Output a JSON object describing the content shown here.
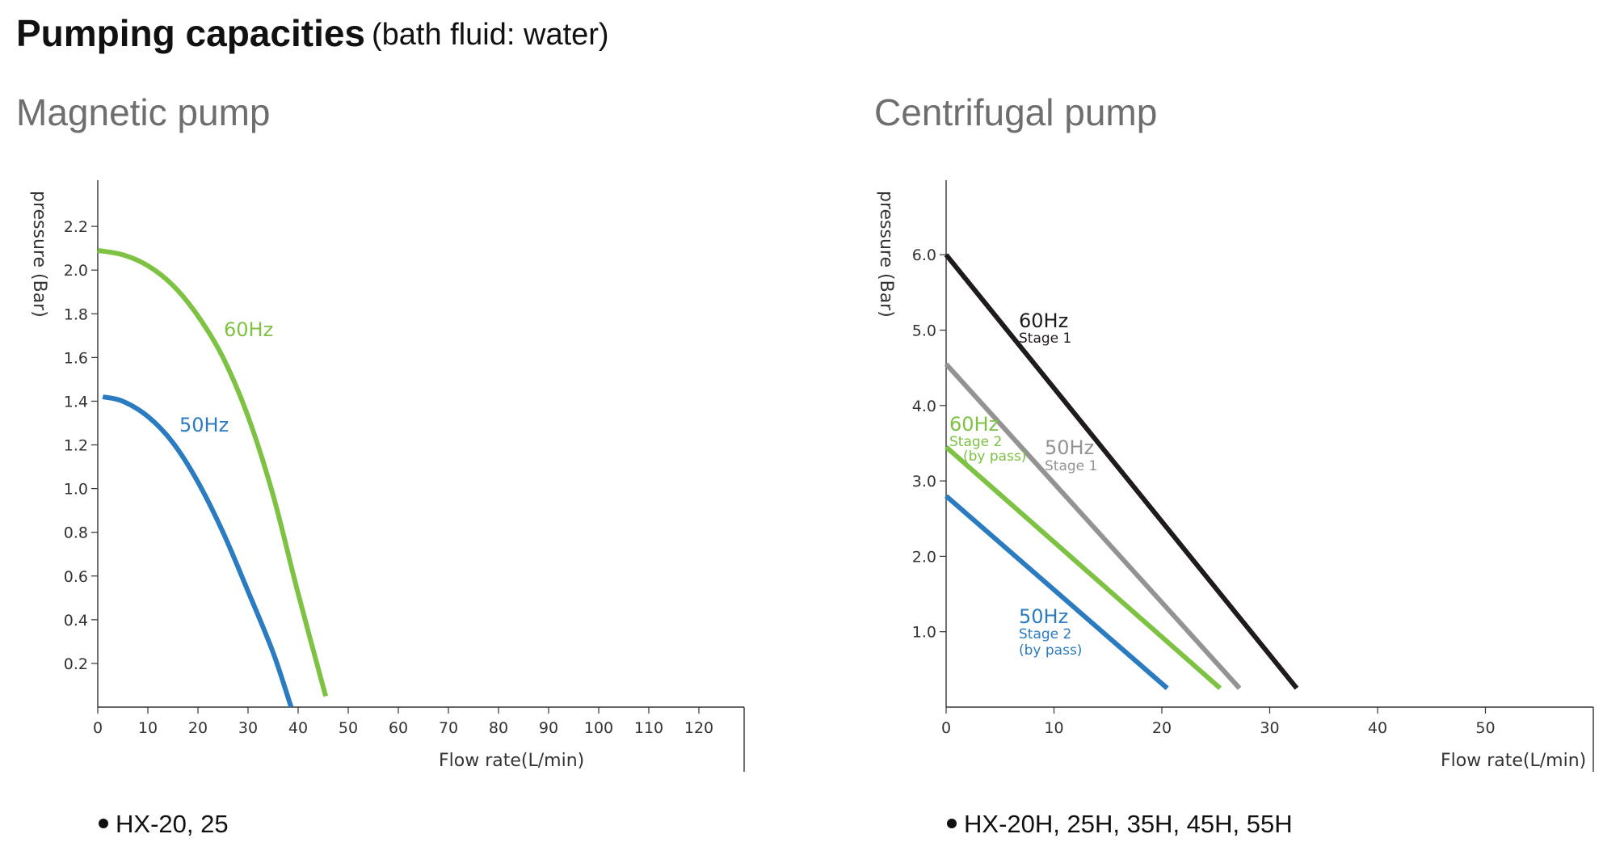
{
  "header": {
    "title": "Pumping capacities",
    "subtitle": "(bath fluid: water)"
  },
  "chart_data": [
    {
      "type": "line",
      "title": "Magnetic pump",
      "xlabel": "Flow rate(L/min)",
      "ylabel": "pressure (Bar)",
      "xlim": [
        0,
        130
      ],
      "ylim": [
        0,
        2.4
      ],
      "x_ticks": [
        "0",
        "10",
        "20",
        "30",
        "40",
        "50",
        "60",
        "70",
        "80",
        "90",
        "100",
        "110",
        "120"
      ],
      "y_ticks": [
        "0.2",
        "0.4",
        "0.6",
        "0.8",
        "1.0",
        "1.2",
        "1.4",
        "1.6",
        "1.8",
        "2.0",
        "2.2"
      ],
      "grid": false,
      "series": [
        {
          "name": "60Hz",
          "color": "#7dc242",
          "points": [
            [
              0,
              2.09
            ],
            [
              5,
              2.07
            ],
            [
              10,
              2.02
            ],
            [
              15,
              1.93
            ],
            [
              20,
              1.79
            ],
            [
              25,
              1.6
            ],
            [
              30,
              1.33
            ],
            [
              35,
              0.97
            ],
            [
              40,
              0.52
            ],
            [
              45.5,
              0.05
            ]
          ]
        },
        {
          "name": "50Hz",
          "color": "#2a7bc0",
          "points": [
            [
              1,
              1.42
            ],
            [
              5,
              1.4
            ],
            [
              10,
              1.33
            ],
            [
              15,
              1.21
            ],
            [
              20,
              1.03
            ],
            [
              25,
              0.8
            ],
            [
              30,
              0.53
            ],
            [
              35,
              0.25
            ],
            [
              38.6,
              0.0
            ]
          ]
        }
      ],
      "footnote": "HX-20, 25"
    },
    {
      "type": "line",
      "title": "Centrifugal pump",
      "xlabel": "Flow rate(L/min)",
      "ylabel": "pressure (Bar)",
      "xlim": [
        0,
        60
      ],
      "ylim": [
        0,
        7
      ],
      "x_ticks": [
        "0",
        "10",
        "20",
        "30",
        "40",
        "50"
      ],
      "y_ticks": [
        "1.0",
        "2.0",
        "3.0",
        "4.0",
        "5.0",
        "6.0"
      ],
      "grid": false,
      "series": [
        {
          "name": "60Hz",
          "subname": "Stage 1",
          "color": "#1f1a1c",
          "points": [
            [
              0,
              6.0
            ],
            [
              32.5,
              0.25
            ]
          ]
        },
        {
          "name": "50Hz",
          "subname": "Stage 1",
          "color": "#939393",
          "points": [
            [
              0,
              4.55
            ],
            [
              27.2,
              0.25
            ]
          ]
        },
        {
          "name": "60Hz",
          "subname": "Stage 2",
          "subname2": "(by pass)",
          "color": "#7dc242",
          "points": [
            [
              0,
              3.45
            ],
            [
              25.4,
              0.25
            ]
          ]
        },
        {
          "name": "50Hz",
          "subname": "Stage 2",
          "subname2": "(by pass)",
          "color": "#2a7bc0",
          "points": [
            [
              0,
              2.8
            ],
            [
              20.5,
              0.25
            ]
          ]
        }
      ],
      "footnote": "HX-20H, 25H, 35H, 45H, 55H"
    }
  ]
}
